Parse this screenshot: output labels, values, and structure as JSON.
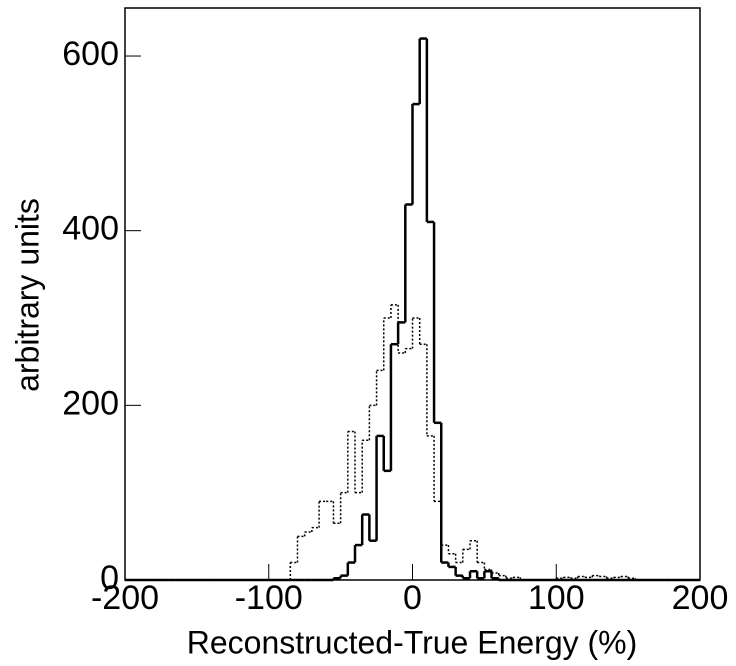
{
  "chart_data": {
    "type": "histogram",
    "xlabel": "Reconstructed-True Energy (%)",
    "ylabel": "arbitrary units",
    "bins": [
      -200,
      -195,
      -190,
      -185,
      -180,
      -175,
      -170,
      -165,
      -160,
      -155,
      -150,
      -145,
      -140,
      -135,
      -130,
      -125,
      -120,
      -115,
      -110,
      -105,
      -100,
      -95,
      -90,
      -85,
      -80,
      -75,
      -70,
      -65,
      -60,
      -55,
      -50,
      -45,
      -40,
      -35,
      -30,
      -25,
      -20,
      -15,
      -10,
      -5,
      0,
      5,
      10,
      15,
      20,
      25,
      30,
      35,
      40,
      45,
      50,
      55,
      60,
      65,
      70,
      75,
      80,
      85,
      90,
      95,
      100,
      105,
      110,
      115,
      120,
      125,
      130,
      135,
      140,
      145,
      150,
      155,
      160,
      165,
      170,
      175,
      180,
      185,
      190,
      195,
      200
    ],
    "series": [
      {
        "color": "#000000",
        "line_style": "solid",
        "values": [
          0,
          0,
          0,
          0,
          0,
          0,
          0,
          0,
          0,
          0,
          0,
          0,
          0,
          0,
          0,
          0,
          0,
          0,
          0,
          0,
          0,
          0,
          0,
          0,
          0,
          0,
          0,
          0,
          0,
          2,
          5,
          20,
          40,
          75,
          45,
          165,
          125,
          270,
          295,
          430,
          545,
          620,
          410,
          180,
          20,
          15,
          5,
          2,
          10,
          2,
          10,
          2,
          0,
          0,
          0,
          0,
          0,
          0,
          0,
          0,
          0,
          0,
          0,
          0,
          0,
          0,
          0,
          0,
          0,
          0,
          0,
          0,
          0,
          0,
          0,
          0,
          0,
          0,
          0,
          0
        ]
      },
      {
        "color": "#000000",
        "line_style": "dotted",
        "values": [
          0,
          0,
          0,
          0,
          0,
          0,
          0,
          0,
          0,
          0,
          0,
          0,
          0,
          0,
          0,
          0,
          0,
          0,
          0,
          0,
          0,
          0,
          0,
          20,
          50,
          55,
          60,
          90,
          90,
          65,
          100,
          170,
          100,
          160,
          200,
          240,
          300,
          315,
          260,
          265,
          300,
          270,
          165,
          90,
          40,
          30,
          20,
          35,
          45,
          20,
          12,
          8,
          5,
          2,
          3,
          0,
          0,
          0,
          0,
          0,
          2,
          3,
          2,
          4,
          3,
          5,
          4,
          2,
          3,
          4,
          2,
          0,
          0,
          0,
          0,
          0,
          0,
          0,
          0,
          0
        ]
      }
    ],
    "xlim": [
      -200,
      200
    ],
    "ylim": [
      0,
      655
    ],
    "xticks": [
      -200,
      -100,
      0,
      100,
      200
    ],
    "yticks": [
      0,
      200,
      400,
      600
    ]
  }
}
